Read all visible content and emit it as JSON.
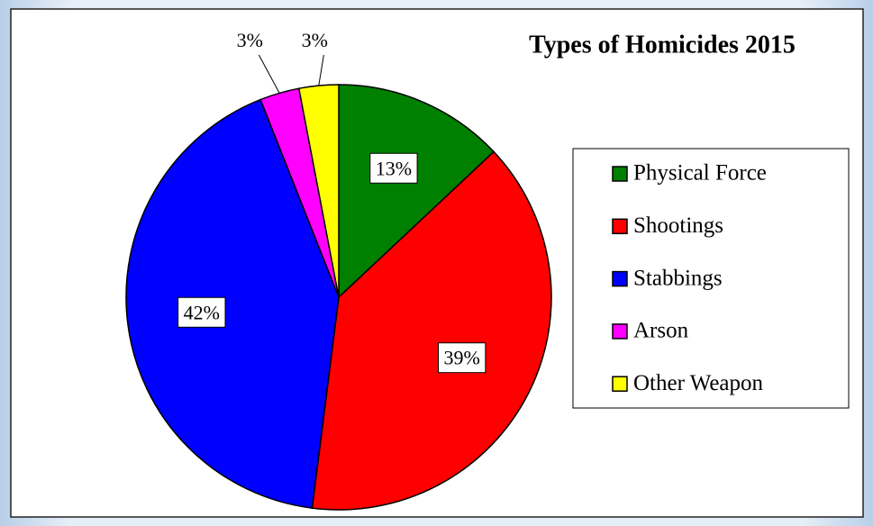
{
  "chart_data": {
    "type": "pie",
    "title": "Types of Homicides 2015",
    "categories": [
      "Physical Force",
      "Shootings",
      "Stabbings",
      "Arson",
      "Other Weapon"
    ],
    "values": [
      13,
      39,
      42,
      3,
      3
    ],
    "value_labels": [
      "13%",
      "39%",
      "42%",
      "3%",
      "3%"
    ],
    "colors": [
      "#008000",
      "#ff0000",
      "#0000ff",
      "#ff00ff",
      "#ffff00"
    ],
    "legend": "right"
  }
}
